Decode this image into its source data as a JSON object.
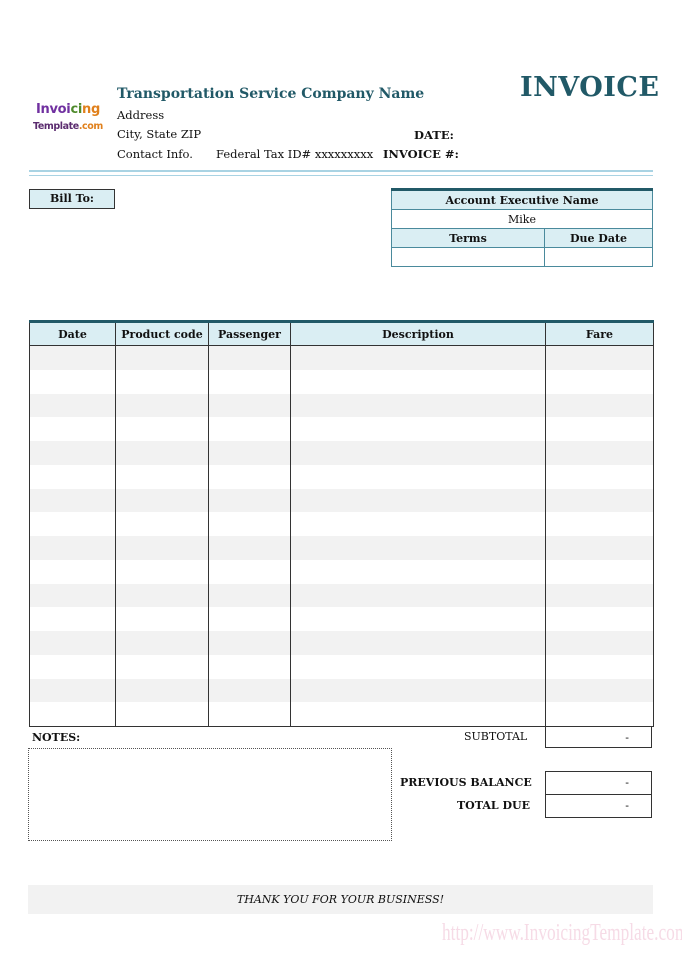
{
  "logo": {
    "line1": "Invoicing",
    "line2": "Template.com"
  },
  "company": {
    "name": "Transportation Service Company Name",
    "address": "Address",
    "city": "City, State ZIP",
    "contact": "Contact Info.",
    "tax_id": "Federal Tax ID# xxxxxxxxx"
  },
  "title": "INVOICE",
  "date_label": "DATE:",
  "invoice_no_label": "INVOICE #:",
  "bill_to_label": "Bill To:",
  "account": {
    "header": "Account Executive Name",
    "name": "Mike",
    "terms_label": "Terms",
    "due_date_label": "Due Date",
    "terms": "",
    "due_date": ""
  },
  "items": {
    "columns": [
      "Date",
      "Product code",
      "Passenger",
      "Description",
      "Fare"
    ],
    "row_count": 16
  },
  "notes_label": "NOTES:",
  "totals": {
    "subtotal_label": "SUBTOTAL",
    "subtotal": "-",
    "previous_balance_label": "PREVIOUS BALANCE",
    "previous_balance": "-",
    "total_due_label": "TOTAL DUE",
    "total_due": "-"
  },
  "footer": "THANK YOU FOR YOUR BUSINESS!",
  "watermark": "http://www.InvoicingTemplate.com",
  "colors": {
    "accent": "#215967",
    "header_fill": "#daeef3",
    "stripe": "#f2f2f2"
  }
}
